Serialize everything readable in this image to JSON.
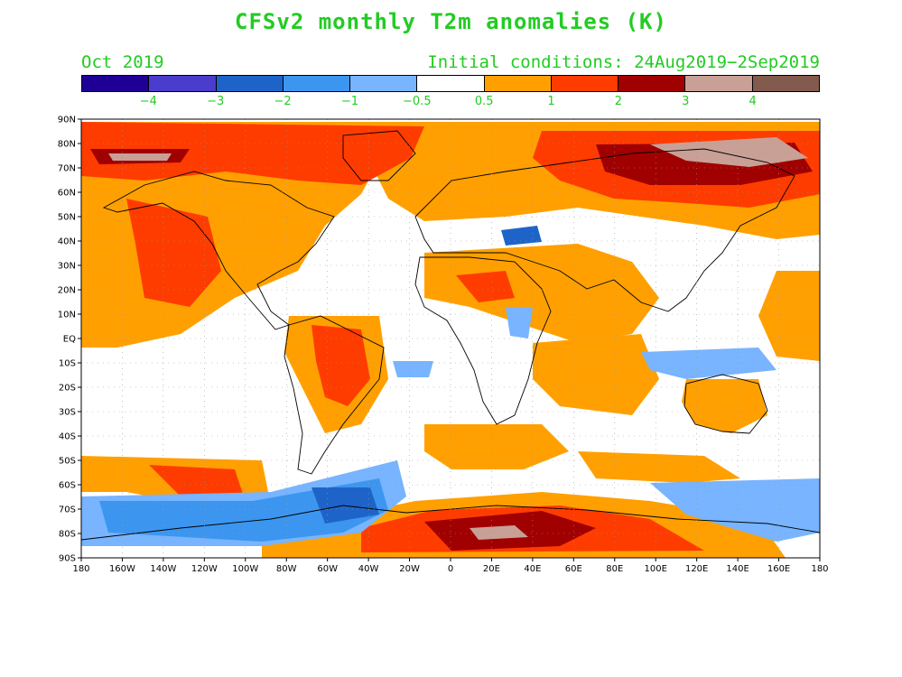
{
  "title": "CFSv2 monthly T2m anomalies (K)",
  "month_label": "Oct 2019",
  "init_label": "Initial conditions: 24Aug2019−2Sep2019",
  "colorbar": {
    "colors": [
      "#1e0096",
      "#4a3ccc",
      "#1e64c8",
      "#3c96f0",
      "#78b4ff",
      "#ffffff",
      "#ffa000",
      "#ff3c00",
      "#a00000",
      "#c8a096",
      "#825a4e"
    ],
    "tick_labels": [
      "−4",
      "−3",
      "−2",
      "−1",
      "−0.5",
      "0.5",
      "1",
      "2",
      "3",
      "4"
    ]
  },
  "map": {
    "lat_labels": [
      "90N",
      "80N",
      "70N",
      "60N",
      "50N",
      "40N",
      "30N",
      "20N",
      "10N",
      "EQ",
      "10S",
      "20S",
      "30S",
      "40S",
      "50S",
      "60S",
      "70S",
      "80S",
      "90S"
    ],
    "lon_labels": [
      "180",
      "160W",
      "140W",
      "120W",
      "100W",
      "80W",
      "60W",
      "40W",
      "20W",
      "0",
      "20E",
      "40E",
      "60E",
      "80E",
      "100E",
      "120E",
      "140E",
      "160E",
      "180"
    ]
  }
}
